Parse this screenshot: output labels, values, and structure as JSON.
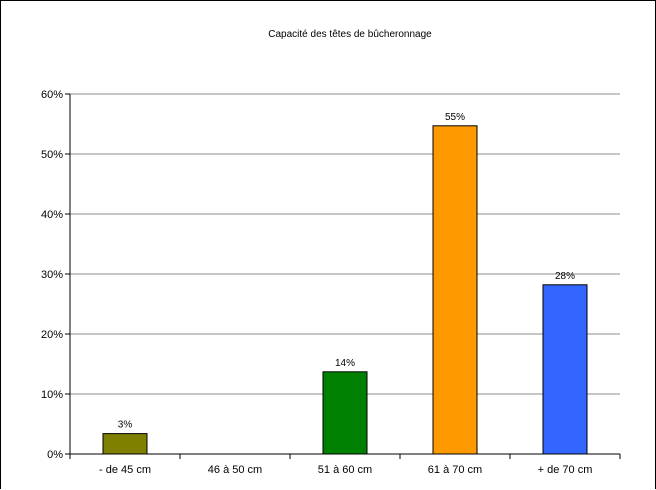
{
  "chart_data": {
    "type": "bar",
    "title": "Capacité des têtes de bûcheronnage",
    "xlabel": "",
    "ylabel": "",
    "categories": [
      "- de 45 cm",
      "46 à 50 cm",
      "51 à 60 cm",
      "61 à 70 cm",
      "+ de 70 cm"
    ],
    "values": [
      0.034,
      0.0,
      0.137,
      0.547,
      0.282
    ],
    "data_labels": [
      "3%",
      "",
      "14%",
      "55%",
      "28%"
    ],
    "bar_colors": [
      "#808000",
      "#808000",
      "#008000",
      "#ff9900",
      "#3366ff"
    ],
    "ylim": [
      0,
      0.6
    ],
    "yticks": [
      0,
      0.1,
      0.2,
      0.3,
      0.4,
      0.5,
      0.6
    ],
    "ytick_labels": [
      "0%",
      "10%",
      "20%",
      "30%",
      "40%",
      "50%",
      "60%"
    ],
    "grid": true,
    "legend": "none"
  }
}
